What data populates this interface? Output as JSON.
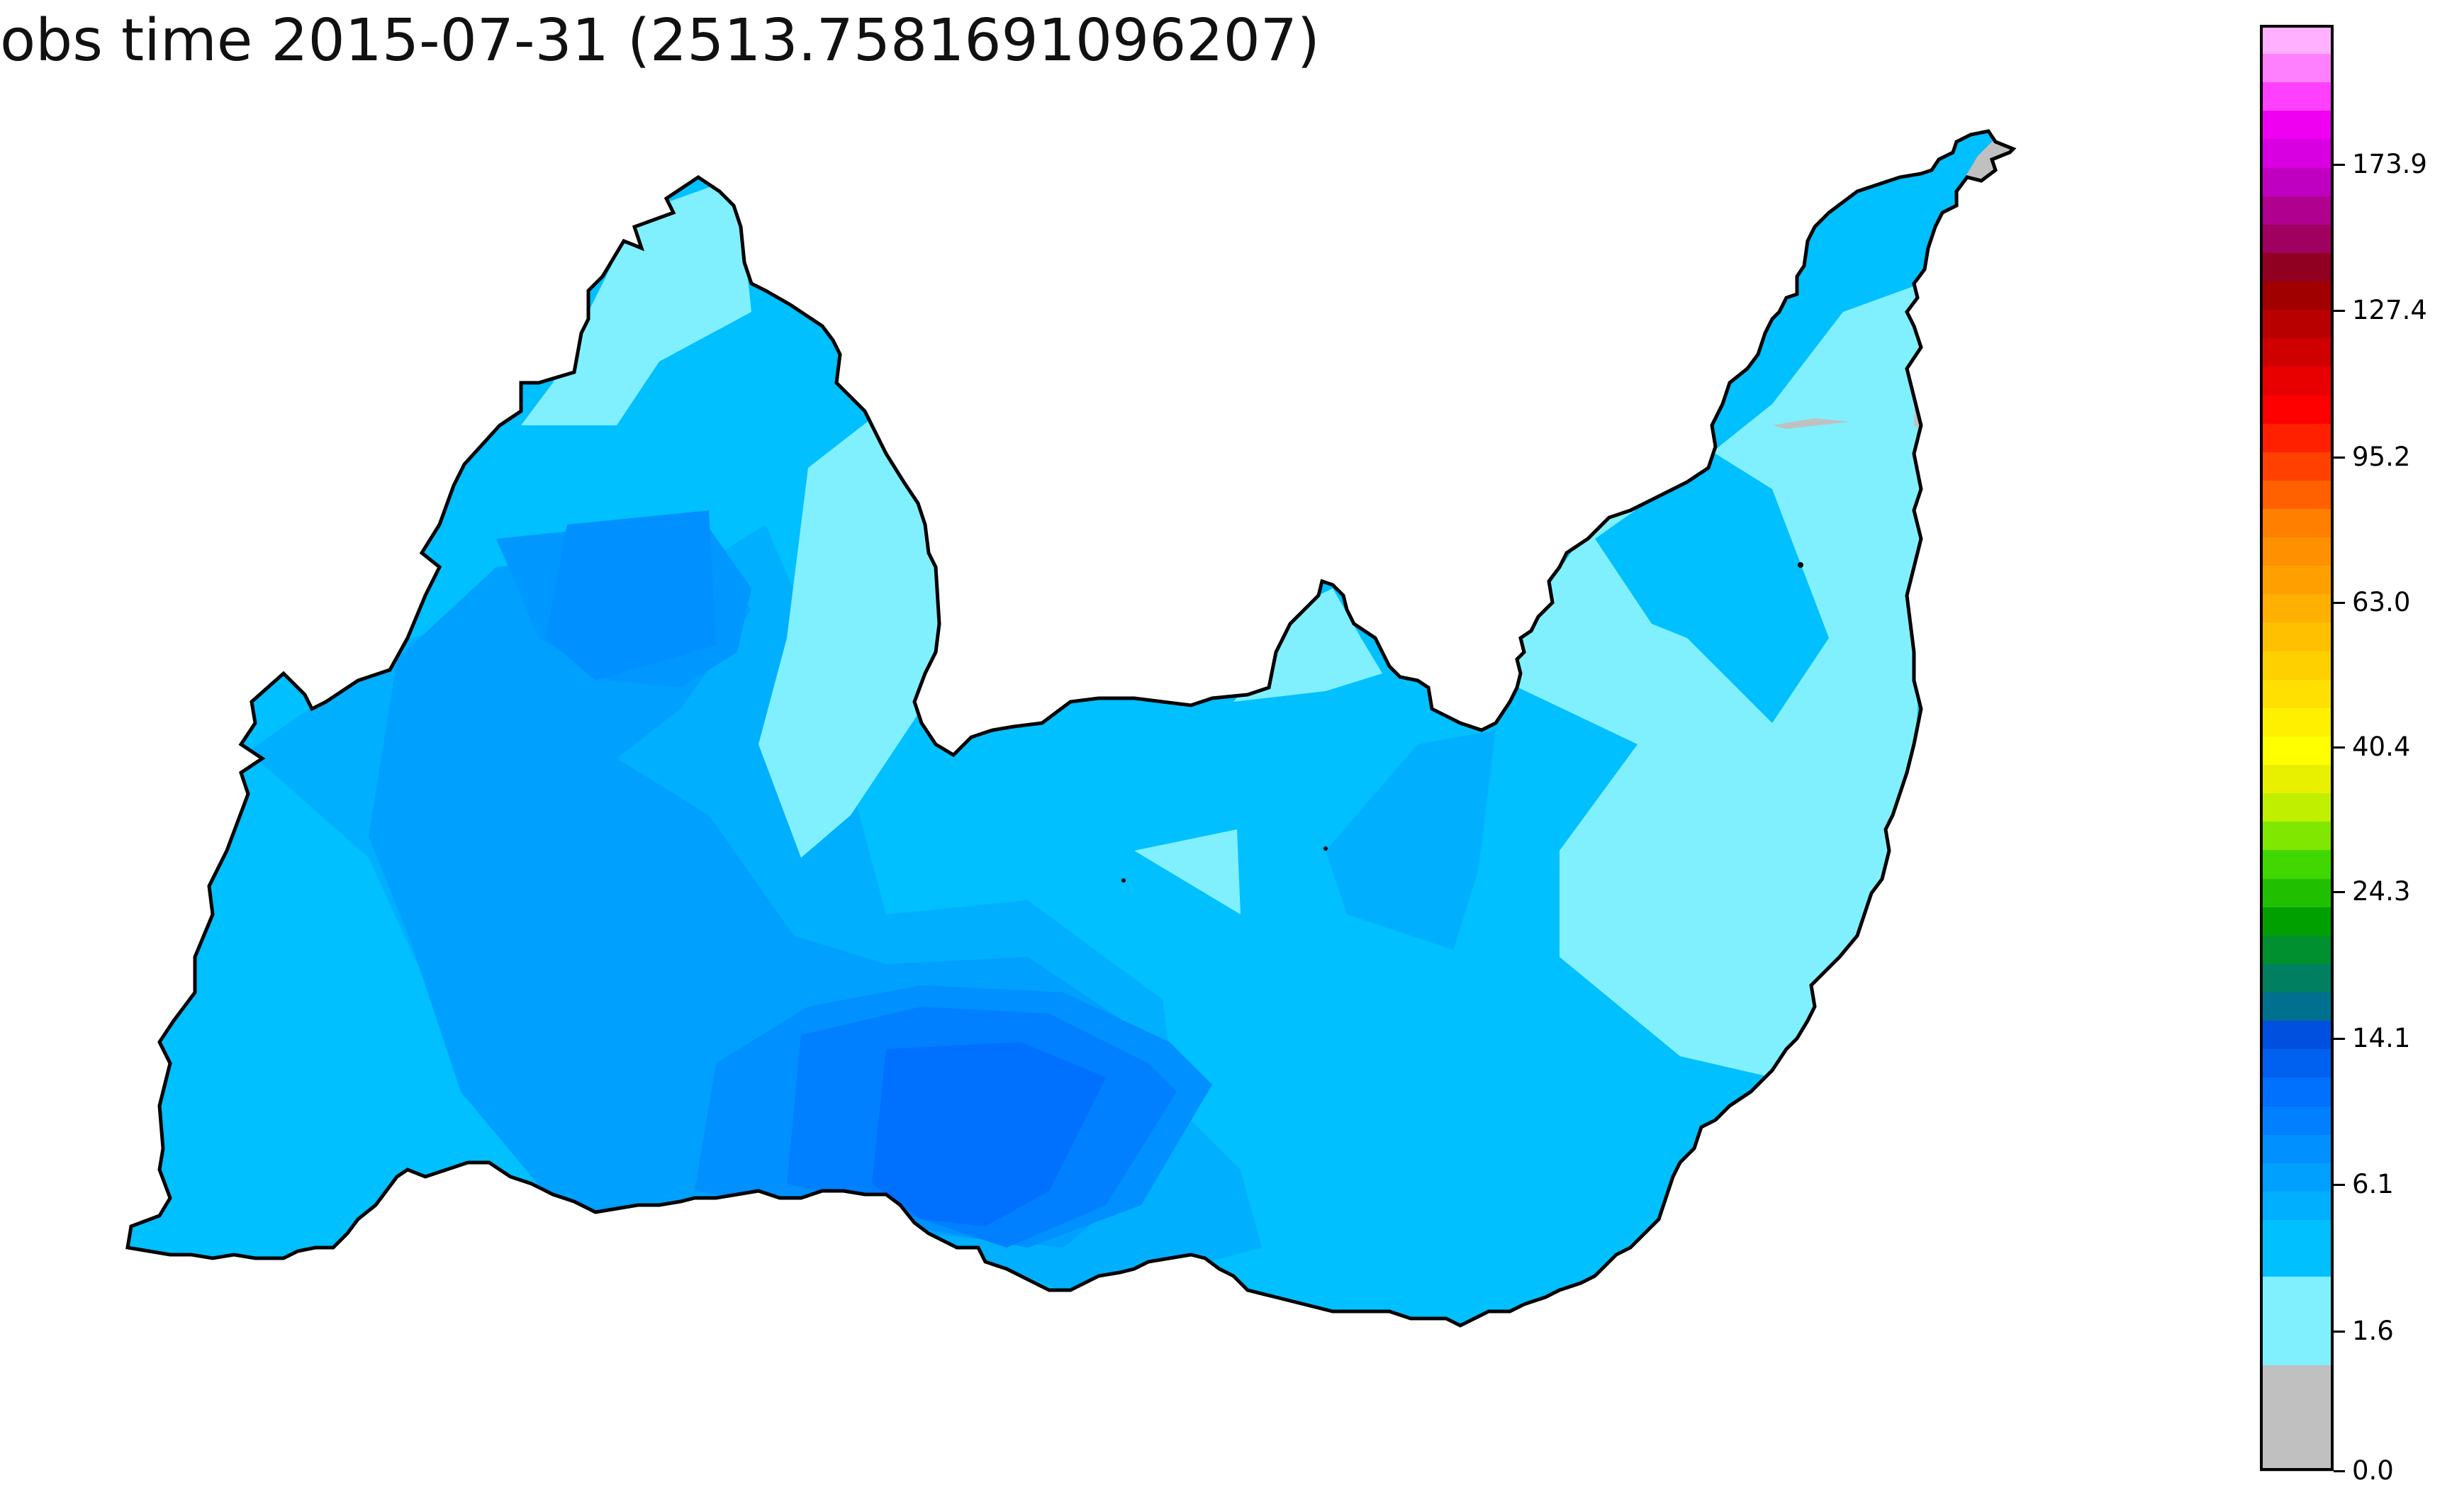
{
  "title": "obs time 2015-07-31 (2513.7581691096207)",
  "colorbar": {
    "ticks": [
      {
        "label": "173.9",
        "value": 173.9
      },
      {
        "label": "127.4",
        "value": 127.4
      },
      {
        "label": "95.2",
        "value": 95.2
      },
      {
        "label": "63.0",
        "value": 63.0
      },
      {
        "label": "40.4",
        "value": 40.4
      },
      {
        "label": "24.3",
        "value": 24.3
      },
      {
        "label": "14.1",
        "value": 14.1
      },
      {
        "label": "6.1",
        "value": 6.1
      },
      {
        "label": "1.6",
        "value": 1.6
      },
      {
        "label": "0.0",
        "value": 0.0
      }
    ],
    "colors": [
      "#c0c0c0",
      "#80f0ff",
      "#00c0ff",
      "#00b0ff",
      "#00a0ff",
      "#0090ff",
      "#0080ff",
      "#0070ff",
      "#0060f0",
      "#0050e0",
      "#007090",
      "#008060",
      "#009030",
      "#00a000",
      "#20c000",
      "#40d800",
      "#80e800",
      "#c0f000",
      "#e8f000",
      "#ffff00",
      "#fff000",
      "#ffe000",
      "#ffd000",
      "#ffc000",
      "#ffb000",
      "#ffa000",
      "#ff9000",
      "#ff8000",
      "#ff6000",
      "#ff4000",
      "#ff2000",
      "#ff0000",
      "#e80000",
      "#d00000",
      "#b80000",
      "#a00000",
      "#900020",
      "#a00060",
      "#b00090",
      "#c000c0",
      "#d800e0",
      "#f000f0",
      "#ff40ff",
      "#ff80ff",
      "#ffb0ff"
    ]
  },
  "map": {
    "regions": [
      {
        "name": "basin-background",
        "color": "#00c0ff"
      },
      {
        "name": "west-rain-core",
        "color": "#00a0ff"
      },
      {
        "name": "north-rain-core",
        "color": "#0090ff"
      },
      {
        "name": "south-rain-core",
        "color": "#0070ff"
      },
      {
        "name": "light-rain-zones",
        "color": "#80f0ff"
      },
      {
        "name": "no-rain-zone",
        "color": "#c0c0c0"
      }
    ],
    "outline_color": "#000000"
  }
}
